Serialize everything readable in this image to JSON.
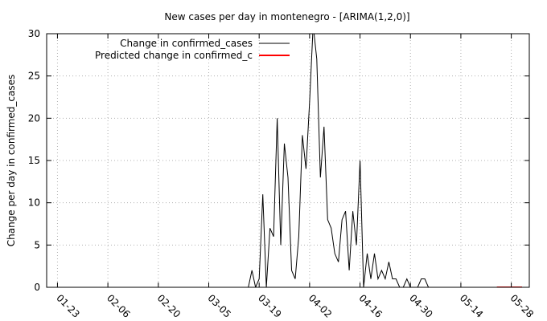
{
  "chart_data": {
    "type": "line",
    "title": "New cases per day in montenegro -  [ARIMA(1,2,0)]",
    "xlabel": "",
    "ylabel": "Change per day in confirmed_cases",
    "x_ticks": [
      "01-23",
      "02-06",
      "02-20",
      "03-05",
      "03-19",
      "04-02",
      "04-16",
      "04-30",
      "05-14",
      "05-28"
    ],
    "y_ticks": [
      "0",
      "5",
      "10",
      "15",
      "20",
      "25",
      "30"
    ],
    "xlim": [
      "01-20",
      "06-02"
    ],
    "ylim": [
      0,
      30
    ],
    "grid": true,
    "legend_position": "top-center",
    "series": [
      {
        "name": "Change in confirmed_cases",
        "color": "#000000",
        "points": [
          [
            "03-16",
            0
          ],
          [
            "03-17",
            2
          ],
          [
            "03-18",
            0
          ],
          [
            "03-19",
            1
          ],
          [
            "03-20",
            11
          ],
          [
            "03-21",
            0
          ],
          [
            "03-22",
            7
          ],
          [
            "03-23",
            6
          ],
          [
            "03-24",
            20
          ],
          [
            "03-25",
            5
          ],
          [
            "03-26",
            17
          ],
          [
            "03-27",
            13
          ],
          [
            "03-28",
            2
          ],
          [
            "03-29",
            1
          ],
          [
            "03-30",
            6
          ],
          [
            "03-31",
            18
          ],
          [
            "04-01",
            14
          ],
          [
            "04-02",
            22
          ],
          [
            "04-03",
            31
          ],
          [
            "04-04",
            27
          ],
          [
            "04-05",
            13
          ],
          [
            "04-06",
            19
          ],
          [
            "04-07",
            8
          ],
          [
            "04-08",
            7
          ],
          [
            "04-09",
            4
          ],
          [
            "04-10",
            3
          ],
          [
            "04-11",
            8
          ],
          [
            "04-12",
            9
          ],
          [
            "04-13",
            2
          ],
          [
            "04-14",
            9
          ],
          [
            "04-15",
            5
          ],
          [
            "04-16",
            15
          ],
          [
            "04-17",
            0
          ],
          [
            "04-18",
            4
          ],
          [
            "04-19",
            1
          ],
          [
            "04-20",
            4
          ],
          [
            "04-21",
            1
          ],
          [
            "04-22",
            2
          ],
          [
            "04-23",
            1
          ],
          [
            "04-24",
            3
          ],
          [
            "04-25",
            1
          ],
          [
            "04-26",
            1
          ],
          [
            "04-27",
            0
          ],
          [
            "04-28",
            0
          ],
          [
            "04-29",
            1
          ],
          [
            "04-30",
            0
          ],
          [
            "05-01",
            0
          ],
          [
            "05-02",
            0
          ],
          [
            "05-03",
            1
          ],
          [
            "05-04",
            1
          ],
          [
            "05-05",
            0
          ],
          [
            "05-06",
            0
          ]
        ]
      },
      {
        "name": "Predicted change in confirmed_c",
        "color": "#ff0000",
        "points": [
          [
            "05-24",
            0
          ],
          [
            "05-31",
            0
          ]
        ]
      }
    ]
  }
}
